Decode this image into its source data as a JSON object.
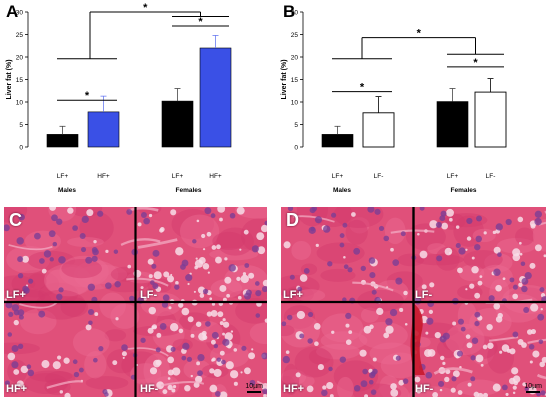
{
  "chart_data": [
    {
      "panel": "A",
      "type": "bar",
      "ylabel": "Liver fat (%)",
      "ylim": [
        0,
        30
      ],
      "yticks": [
        0,
        5,
        10,
        15,
        20,
        25,
        30
      ],
      "groups": [
        "Males",
        "Females"
      ],
      "categories": [
        "LF+",
        "HF+",
        "LF+",
        "HF+"
      ],
      "values": [
        2.8,
        7.8,
        10.2,
        22.0
      ],
      "errors": [
        1.8,
        3.5,
        2.8,
        2.8
      ],
      "colors": [
        "#000000",
        "#3a50e6",
        "#000000",
        "#3a50e6"
      ],
      "significance": [
        "*",
        "*",
        "*"
      ]
    },
    {
      "panel": "B",
      "type": "bar",
      "ylabel": "Liver fat (%)",
      "ylim": [
        0,
        30
      ],
      "yticks": [
        0,
        5,
        10,
        15,
        20,
        25,
        30
      ],
      "groups": [
        "Males",
        "Females"
      ],
      "categories": [
        "LF+",
        "LF-",
        "LF+",
        "LF-"
      ],
      "values": [
        2.8,
        7.6,
        10.1,
        12.2
      ],
      "errors": [
        1.8,
        3.6,
        2.9,
        3.0
      ],
      "colors": [
        "#000000",
        "#ffffff",
        "#000000",
        "#ffffff"
      ],
      "significance": [
        "*",
        "*",
        "*"
      ]
    }
  ],
  "micrographs": {
    "C": {
      "letter": "C",
      "quadrants": [
        "LF+",
        "LF-",
        "HF+",
        "HF-"
      ],
      "scale": "10µm"
    },
    "D": {
      "letter": "D",
      "quadrants": [
        "LF+",
        "LF-",
        "HF+",
        "HF-"
      ],
      "scale": "10µm"
    }
  }
}
